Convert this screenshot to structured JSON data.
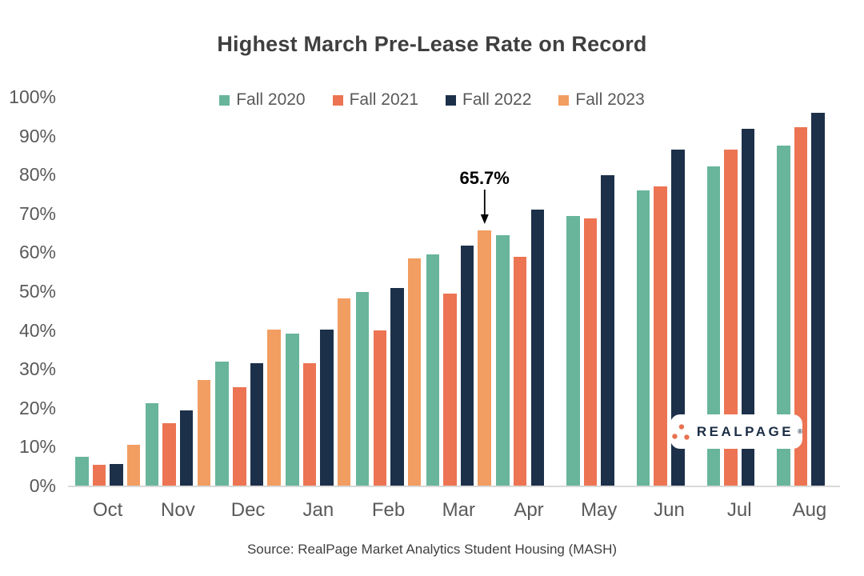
{
  "title": "Highest March Pre-Lease Rate on Record",
  "source": "Source: RealPage Market Analytics Student Housing (MASH)",
  "annotation": {
    "label": "65.7%",
    "category": "Mar",
    "series": "Fall 2023"
  },
  "logo": {
    "text": "REALPAGE",
    "trademark": "®",
    "dot_color": "#e8714f",
    "text_color": "#1b2d45"
  },
  "colors": {
    "title_text": "#3f3f3f",
    "axis_text": "#595959",
    "axis_line": "#d9d9d9",
    "annotation_text": "#000000",
    "background": "#ffffff"
  },
  "chart_data": {
    "type": "bar",
    "title": "Highest March Pre-Lease Rate on Record",
    "categories": [
      "Oct",
      "Nov",
      "Dec",
      "Jan",
      "Feb",
      "Mar",
      "Apr",
      "May",
      "Jun",
      "Jul",
      "Aug"
    ],
    "series": [
      {
        "name": "Fall 2020",
        "color": "#68b59b",
        "values": [
          7.4,
          21.1,
          31.9,
          39.0,
          49.9,
          59.5,
          64.5,
          69.3,
          75.9,
          82.1,
          87.5
        ]
      },
      {
        "name": "Fall 2021",
        "color": "#ec7453",
        "values": [
          5.3,
          16.0,
          25.4,
          31.4,
          39.9,
          49.3,
          58.9,
          68.7,
          77.0,
          86.4,
          92.2
        ]
      },
      {
        "name": "Fall 2022",
        "color": "#1d3049",
        "values": [
          5.6,
          19.3,
          31.5,
          40.2,
          50.9,
          61.7,
          70.9,
          79.8,
          86.5,
          91.7,
          95.9
        ]
      },
      {
        "name": "Fall 2023",
        "color": "#f29d61",
        "values": [
          10.5,
          27.2,
          40.2,
          48.1,
          58.4,
          65.7,
          null,
          null,
          null,
          null,
          null
        ]
      }
    ],
    "xlabel": "",
    "ylabel": "",
    "y_ticks": [
      "0%",
      "10%",
      "20%",
      "30%",
      "40%",
      "50%",
      "60%",
      "70%",
      "80%",
      "90%",
      "100%"
    ],
    "ylim": [
      0,
      100
    ],
    "grid": false,
    "legend_position": "top",
    "data_label": {
      "text": "65.7%",
      "category": "Mar",
      "series": "Fall 2023"
    }
  }
}
